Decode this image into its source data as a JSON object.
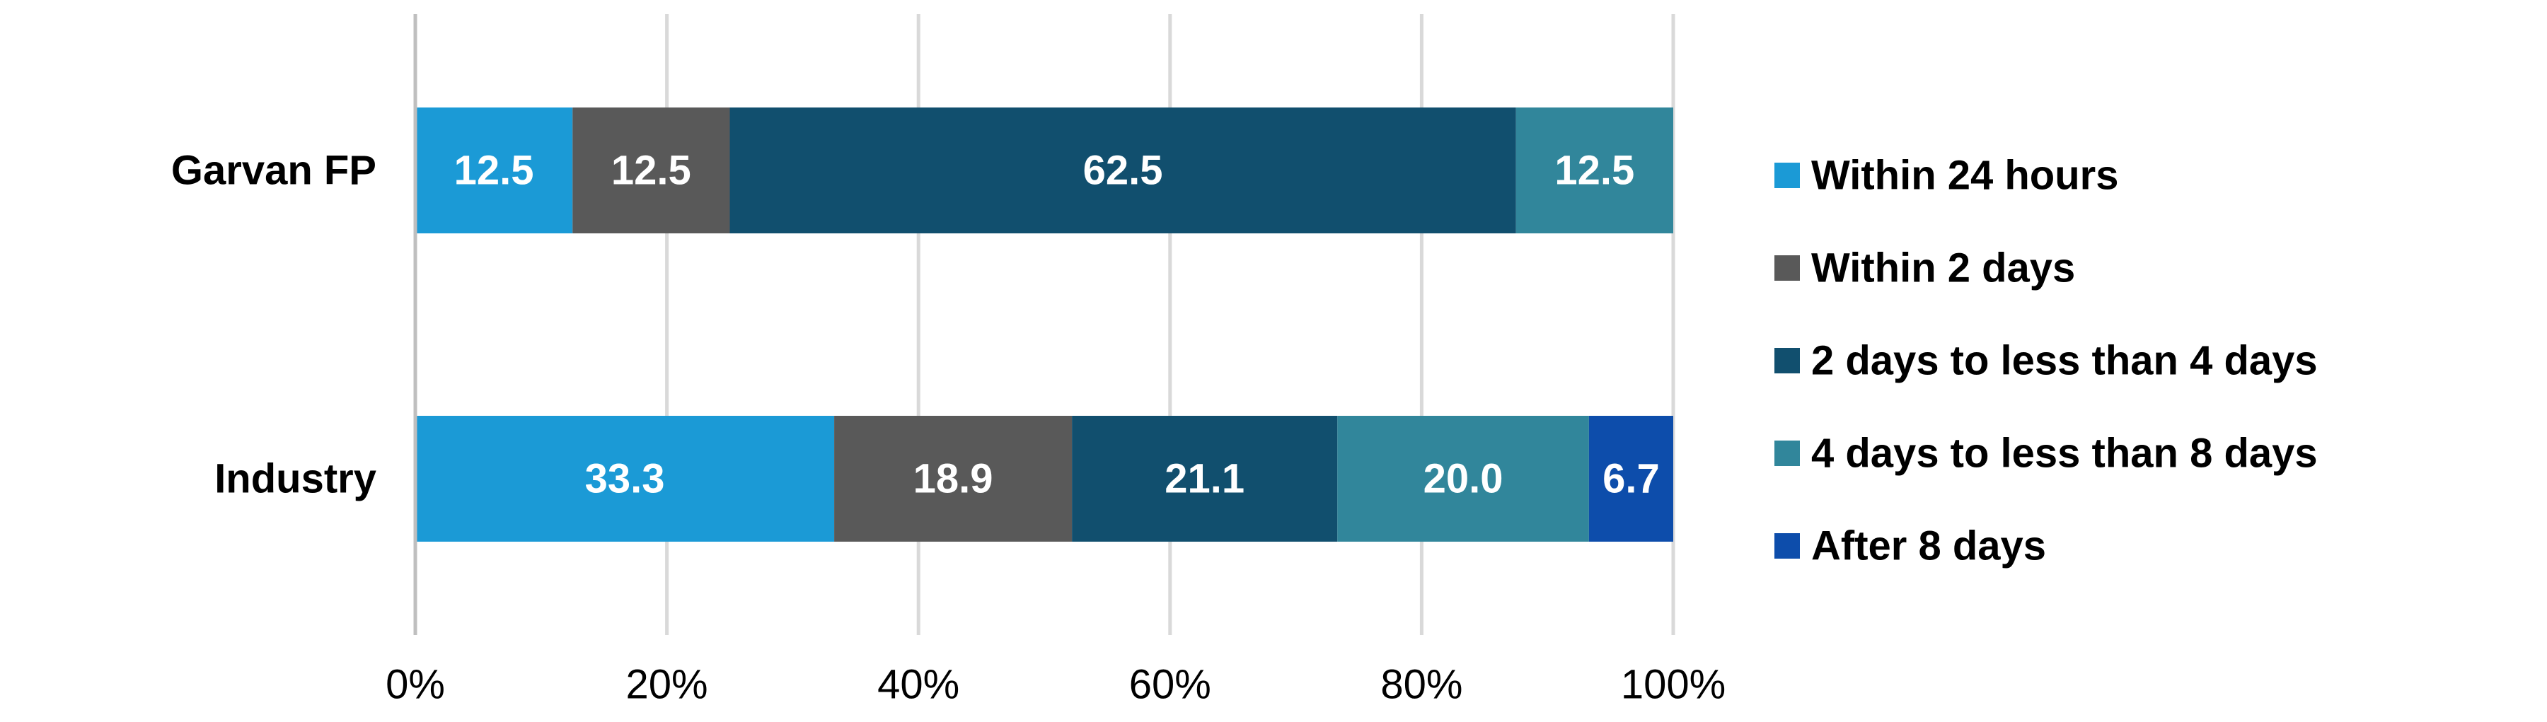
{
  "chart_data": {
    "type": "bar",
    "orientation": "horizontal",
    "stacked": true,
    "percent_stacked": true,
    "categories": [
      "Garvan FP",
      "Industry"
    ],
    "series": [
      {
        "name": "Within 24 hours",
        "color": "#1B9AD6",
        "values": [
          12.5,
          33.3
        ],
        "labels": [
          "12.5",
          "33.3"
        ]
      },
      {
        "name": "Within 2 days",
        "color": "#595959",
        "values": [
          12.5,
          18.9
        ],
        "labels": [
          "12.5",
          "18.9"
        ]
      },
      {
        "name": "2 days to less than 4 days",
        "color": "#114F6E",
        "values": [
          62.5,
          21.1
        ],
        "labels": [
          "62.5",
          "21.1"
        ]
      },
      {
        "name": "4 days to less than 8 days",
        "color": "#31869B",
        "values": [
          12.5,
          20.0
        ],
        "labels": [
          "12.5",
          "20.0"
        ]
      },
      {
        "name": "After 8 days",
        "color": "#0D4DAB",
        "values": [
          0,
          6.7
        ],
        "labels": [
          "",
          "6.7"
        ]
      }
    ],
    "xlim": [
      0,
      100
    ],
    "x_ticks": [
      0,
      20,
      40,
      60,
      80,
      100
    ],
    "x_tick_labels": [
      "0%",
      "20%",
      "40%",
      "60%",
      "80%",
      "100%"
    ],
    "grid": true,
    "legend_position": "right",
    "title": "",
    "xlabel": "",
    "ylabel": ""
  }
}
